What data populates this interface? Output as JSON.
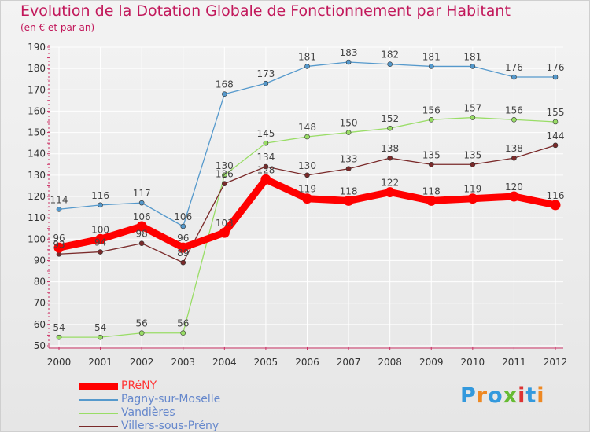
{
  "chart_data": {
    "type": "line",
    "title": "Evolution de la Dotation Globale de Fonctionnement par Habitant",
    "subtitle": "(en € et par an)",
    "xlabel": "",
    "ylabel": "",
    "ylim": [
      50,
      190
    ],
    "yticks": [
      50,
      60,
      70,
      80,
      90,
      100,
      110,
      120,
      130,
      140,
      150,
      160,
      170,
      180,
      190
    ],
    "categories": [
      "2000",
      "2001",
      "2002",
      "2003",
      "2004",
      "2005",
      "2006",
      "2007",
      "2008",
      "2009",
      "2010",
      "2011",
      "2012"
    ],
    "grid": true,
    "legend_position": "bottom-left",
    "series": [
      {
        "name": "PRéNY",
        "color": "#ff0000",
        "values": [
          96,
          100,
          106,
          96,
          103,
          128,
          119,
          118,
          122,
          118,
          119,
          120,
          116
        ]
      },
      {
        "name": "Pagny-sur-Moselle",
        "color": "#5599cc",
        "values": [
          114,
          116,
          117,
          106,
          168,
          173,
          181,
          183,
          182,
          181,
          181,
          176,
          176
        ]
      },
      {
        "name": "Vandières",
        "color": "#99dd66",
        "values": [
          54,
          54,
          56,
          56,
          130,
          145,
          148,
          150,
          152,
          156,
          157,
          156,
          155
        ]
      },
      {
        "name": "Villers-sous-Prény",
        "color": "#7a2a2a",
        "values": [
          93,
          94,
          98,
          89,
          126,
          134,
          130,
          133,
          138,
          135,
          135,
          138,
          144
        ]
      }
    ]
  },
  "logo": {
    "text": "Proxiti",
    "letter_colors": [
      "#3399dd",
      "#ee8822",
      "#3399dd",
      "#66bb33",
      "#dd3333",
      "#3399dd",
      "#ee8822"
    ]
  }
}
